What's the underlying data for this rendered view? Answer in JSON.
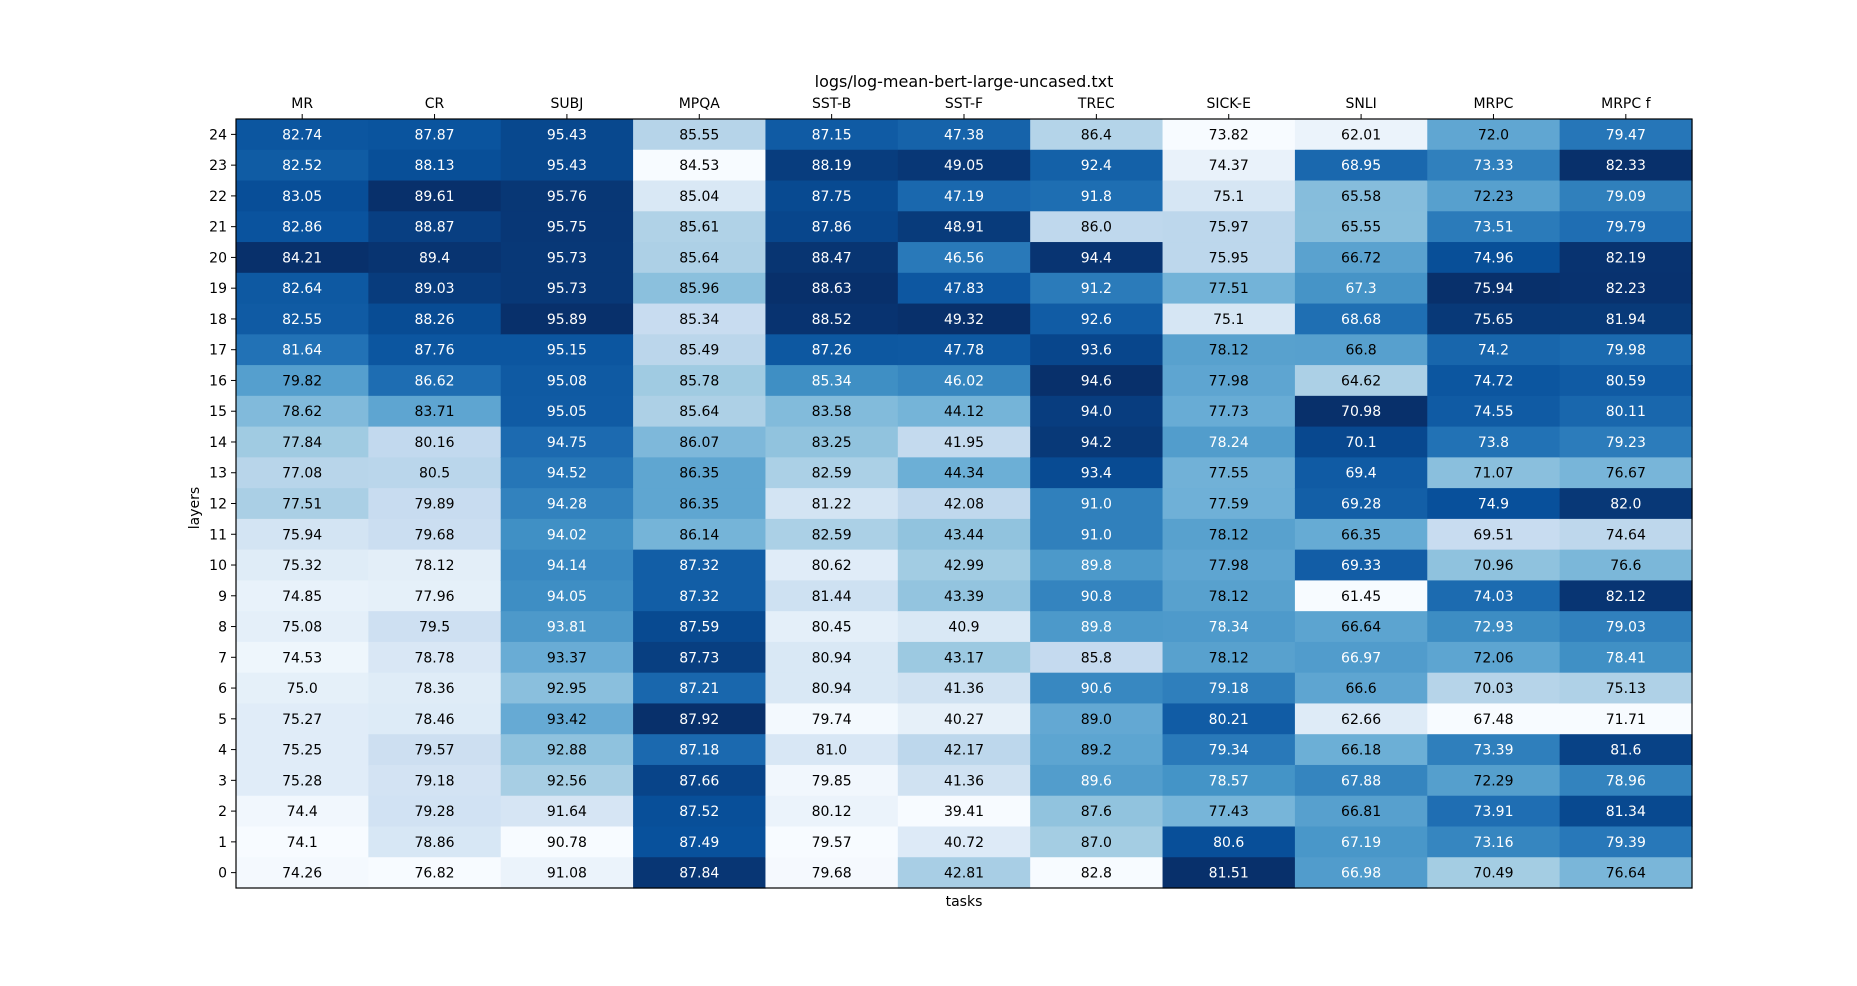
{
  "chart_data": {
    "type": "heatmap",
    "title": "logs/log-mean-bert-large-uncased.txt",
    "xlabel": "tasks",
    "ylabel": "layers",
    "colormap": "Blues",
    "x_axis_position": "top",
    "columns": [
      "MR",
      "CR",
      "SUBJ",
      "MPQA",
      "SST-B",
      "SST-F",
      "TREC",
      "SICK-E",
      "SNLI",
      "MRPC",
      "MRPC f"
    ],
    "rows": [
      "24",
      "23",
      "22",
      "21",
      "20",
      "19",
      "18",
      "17",
      "16",
      "15",
      "14",
      "13",
      "12",
      "11",
      "10",
      "9",
      "8",
      "7",
      "6",
      "5",
      "4",
      "3",
      "2",
      "1",
      "0"
    ],
    "values": [
      [
        "82.74",
        "87.87",
        "95.43",
        "85.55",
        "87.15",
        "47.38",
        "86.4",
        "73.82",
        "62.01",
        "72.0",
        "79.47"
      ],
      [
        "82.52",
        "88.13",
        "95.43",
        "84.53",
        "88.19",
        "49.05",
        "92.4",
        "74.37",
        "68.95",
        "73.33",
        "82.33"
      ],
      [
        "83.05",
        "89.61",
        "95.76",
        "85.04",
        "87.75",
        "47.19",
        "91.8",
        "75.1",
        "65.58",
        "72.23",
        "79.09"
      ],
      [
        "82.86",
        "88.87",
        "95.75",
        "85.61",
        "87.86",
        "48.91",
        "86.0",
        "75.97",
        "65.55",
        "73.51",
        "79.79"
      ],
      [
        "84.21",
        "89.4",
        "95.73",
        "85.64",
        "88.47",
        "46.56",
        "94.4",
        "75.95",
        "66.72",
        "74.96",
        "82.19"
      ],
      [
        "82.64",
        "89.03",
        "95.73",
        "85.96",
        "88.63",
        "47.83",
        "91.2",
        "77.51",
        "67.3",
        "75.94",
        "82.23"
      ],
      [
        "82.55",
        "88.26",
        "95.89",
        "85.34",
        "88.52",
        "49.32",
        "92.6",
        "75.1",
        "68.68",
        "75.65",
        "81.94"
      ],
      [
        "81.64",
        "87.76",
        "95.15",
        "85.49",
        "87.26",
        "47.78",
        "93.6",
        "78.12",
        "66.8",
        "74.2",
        "79.98"
      ],
      [
        "79.82",
        "86.62",
        "95.08",
        "85.78",
        "85.34",
        "46.02",
        "94.6",
        "77.98",
        "64.62",
        "74.72",
        "80.59"
      ],
      [
        "78.62",
        "83.71",
        "95.05",
        "85.64",
        "83.58",
        "44.12",
        "94.0",
        "77.73",
        "70.98",
        "74.55",
        "80.11"
      ],
      [
        "77.84",
        "80.16",
        "94.75",
        "86.07",
        "83.25",
        "41.95",
        "94.2",
        "78.24",
        "70.1",
        "73.8",
        "79.23"
      ],
      [
        "77.08",
        "80.5",
        "94.52",
        "86.35",
        "82.59",
        "44.34",
        "93.4",
        "77.55",
        "69.4",
        "71.07",
        "76.67"
      ],
      [
        "77.51",
        "79.89",
        "94.28",
        "86.35",
        "81.22",
        "42.08",
        "91.0",
        "77.59",
        "69.28",
        "74.9",
        "82.0"
      ],
      [
        "75.94",
        "79.68",
        "94.02",
        "86.14",
        "82.59",
        "43.44",
        "91.0",
        "78.12",
        "66.35",
        "69.51",
        "74.64"
      ],
      [
        "75.32",
        "78.12",
        "94.14",
        "87.32",
        "80.62",
        "42.99",
        "89.8",
        "77.98",
        "69.33",
        "70.96",
        "76.6"
      ],
      [
        "74.85",
        "77.96",
        "94.05",
        "87.32",
        "81.44",
        "43.39",
        "90.8",
        "78.12",
        "61.45",
        "74.03",
        "82.12"
      ],
      [
        "75.08",
        "79.5",
        "93.81",
        "87.59",
        "80.45",
        "40.9",
        "89.8",
        "78.34",
        "66.64",
        "72.93",
        "79.03"
      ],
      [
        "74.53",
        "78.78",
        "93.37",
        "87.73",
        "80.94",
        "43.17",
        "85.8",
        "78.12",
        "66.97",
        "72.06",
        "78.41"
      ],
      [
        "75.0",
        "78.36",
        "92.95",
        "87.21",
        "80.94",
        "41.36",
        "90.6",
        "79.18",
        "66.6",
        "70.03",
        "75.13"
      ],
      [
        "75.27",
        "78.46",
        "93.42",
        "87.92",
        "79.74",
        "40.27",
        "89.0",
        "80.21",
        "62.66",
        "67.48",
        "71.71"
      ],
      [
        "75.25",
        "79.57",
        "92.88",
        "87.18",
        "81.0",
        "42.17",
        "89.2",
        "79.34",
        "66.18",
        "73.39",
        "81.6"
      ],
      [
        "75.28",
        "79.18",
        "92.56",
        "87.66",
        "79.85",
        "41.36",
        "89.6",
        "78.57",
        "67.88",
        "72.29",
        "78.96"
      ],
      [
        "74.4",
        "79.28",
        "91.64",
        "87.52",
        "80.12",
        "39.41",
        "87.6",
        "77.43",
        "66.81",
        "73.91",
        "81.34"
      ],
      [
        "74.1",
        "78.86",
        "90.78",
        "87.49",
        "79.57",
        "40.72",
        "87.0",
        "80.6",
        "67.19",
        "73.16",
        "79.39"
      ],
      [
        "74.26",
        "76.82",
        "91.08",
        "87.84",
        "79.68",
        "42.81",
        "82.8",
        "81.51",
        "66.98",
        "70.49",
        "76.64"
      ]
    ]
  }
}
